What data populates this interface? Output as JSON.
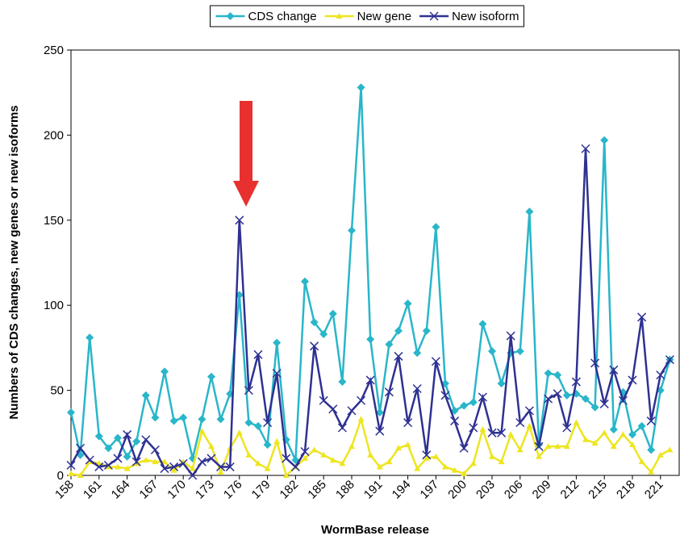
{
  "chart_data": {
    "type": "line",
    "x_label": "WormBase release",
    "y_label": "Numbers of CDS changes, new genes or new isoforms",
    "x": [
      158,
      159,
      160,
      161,
      162,
      163,
      164,
      165,
      166,
      167,
      168,
      169,
      170,
      171,
      172,
      173,
      174,
      175,
      176,
      177,
      178,
      179,
      180,
      181,
      182,
      183,
      184,
      185,
      186,
      187,
      188,
      189,
      190,
      191,
      192,
      193,
      194,
      195,
      196,
      197,
      198,
      199,
      200,
      201,
      202,
      203,
      204,
      205,
      206,
      207,
      208,
      209,
      210,
      211,
      212,
      213,
      214,
      215,
      216,
      217,
      218,
      219,
      220,
      221,
      222
    ],
    "series": [
      {
        "name": "CDS change",
        "color": "#29b6c9",
        "marker": "diamond",
        "values": [
          37,
          12,
          81,
          23,
          16,
          22,
          11,
          20,
          47,
          34,
          61,
          32,
          34,
          10,
          33,
          58,
          33,
          48,
          106,
          31,
          29,
          18,
          78,
          21,
          9,
          114,
          90,
          83,
          95,
          55,
          144,
          228,
          80,
          37,
          77,
          85,
          101,
          72,
          85,
          146,
          54,
          38,
          41,
          43,
          89,
          73,
          54,
          72,
          73,
          155,
          18,
          60,
          59,
          47,
          48,
          45,
          40,
          197,
          27,
          49,
          24,
          29,
          15,
          50,
          68
        ]
      },
      {
        "name": "New gene",
        "color": "#eee520",
        "marker": "triangle",
        "values": [
          1,
          0,
          8,
          7,
          5,
          5,
          4,
          7,
          9,
          8,
          8,
          3,
          8,
          4,
          26,
          17,
          2,
          16,
          25,
          12,
          7,
          4,
          20,
          0,
          5,
          10,
          15,
          12,
          9,
          7,
          17,
          33,
          12,
          5,
          8,
          16,
          18,
          4,
          10,
          11,
          5,
          3,
          1,
          7,
          27,
          11,
          8,
          24,
          15,
          29,
          11,
          17,
          17,
          17,
          31,
          21,
          19,
          25,
          17,
          24,
          18,
          8,
          2,
          12,
          15
        ]
      },
      {
        "name": "New isoform",
        "color": "#2e3192",
        "marker": "x",
        "values": [
          6,
          16,
          9,
          5,
          6,
          10,
          24,
          8,
          21,
          15,
          4,
          5,
          7,
          0,
          8,
          10,
          5,
          5,
          150,
          50,
          71,
          31,
          60,
          10,
          5,
          14,
          76,
          44,
          39,
          28,
          38,
          44,
          56,
          26,
          49,
          70,
          31,
          51,
          12,
          67,
          47,
          32,
          16,
          28,
          46,
          25,
          25,
          82,
          31,
          38,
          17,
          45,
          48,
          28,
          55,
          192,
          66,
          42,
          62,
          44,
          56,
          93,
          32,
          59,
          68
        ]
      }
    ],
    "xlim": [
      158,
      223
    ],
    "xticks": [
      158,
      161,
      164,
      167,
      170,
      173,
      176,
      179,
      182,
      185,
      188,
      191,
      194,
      197,
      200,
      203,
      206,
      209,
      212,
      215,
      218,
      221
    ],
    "ylim": [
      0,
      250
    ],
    "yticks": [
      0,
      50,
      100,
      150,
      200,
      250
    ],
    "grid": false,
    "legend": "top"
  }
}
